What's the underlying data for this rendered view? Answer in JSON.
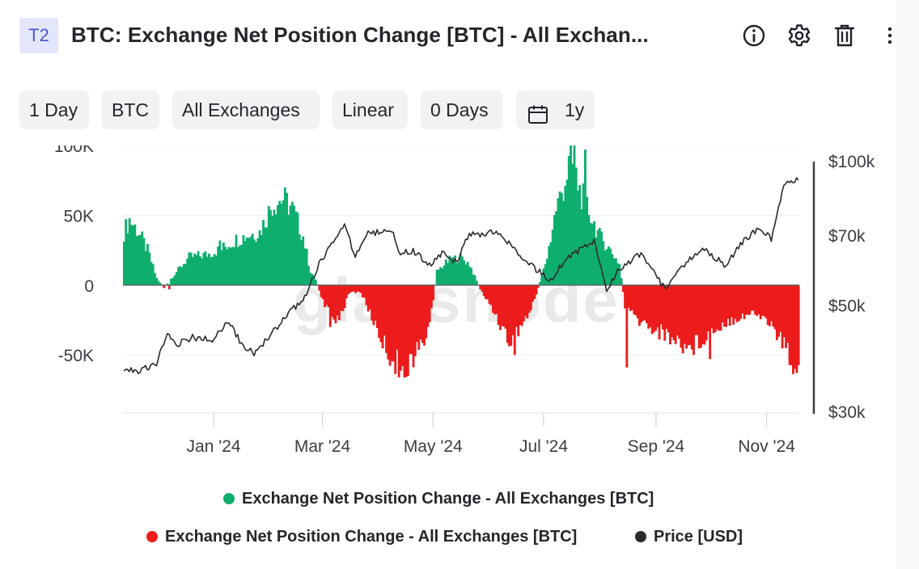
{
  "header": {
    "badge": "T2",
    "title": "BTC: Exchange Net Position Change [BTC] - All Exchan...",
    "icons": [
      "info-icon",
      "gear-icon",
      "trash-icon",
      "more-vertical-icon"
    ]
  },
  "toolbar": {
    "resolution": "1 Day",
    "asset": "BTC",
    "exchange": "All Exchanges",
    "scale": "Linear",
    "moving_average": "0 Days",
    "range": "1y",
    "range_icon": "calendar-icon"
  },
  "legend": {
    "positive": "Exchange Net Position Change - All Exchanges [BTC]",
    "negative": "Exchange Net Position Change - All Exchanges [BTC]",
    "price": "Price [USD]"
  },
  "colors": {
    "positive": "#0fae6e",
    "negative": "#ec1c1c",
    "price": "#2b2b2b",
    "grid": "#eceef1",
    "watermark": "#e4e4e4"
  },
  "chart_data": {
    "type": "bar",
    "title": "",
    "watermark": "glassnode",
    "x_range": [
      "2023-11-12",
      "2024-11-19"
    ],
    "x_ticks": [
      {
        "date": "2024-01-01",
        "label": "Jan '24"
      },
      {
        "date": "2024-03-01",
        "label": "Mar '24"
      },
      {
        "date": "2024-05-01",
        "label": "May '24"
      },
      {
        "date": "2024-07-01",
        "label": "Jul '24"
      },
      {
        "date": "2024-09-01",
        "label": "Sep '24"
      },
      {
        "date": "2024-11-01",
        "label": "Nov '24"
      }
    ],
    "y_left": {
      "ticks": [
        100000,
        50000,
        0,
        -50000
      ],
      "labels": [
        "100K",
        "50K",
        "0",
        "-50K"
      ],
      "range": [
        -91000,
        100000
      ]
    },
    "y_right": {
      "ticks": [
        100000,
        70000,
        50000,
        30000
      ],
      "labels": [
        "$100k",
        "$70k",
        "$50k",
        "$30k"
      ],
      "scale": "log",
      "range": [
        30000,
        100000
      ]
    },
    "grid": true,
    "legend_position": "bottom-center",
    "series": [
      {
        "name": "Exchange Net Position Change - All Exchanges [BTC]",
        "kind": "bars",
        "color_positive": "#0fae6e",
        "color_negative": "#ec1c1c",
        "anchors": [
          [
            "2023-11-12",
            38000
          ],
          [
            "2023-11-15",
            47000
          ],
          [
            "2023-11-20",
            38000
          ],
          [
            "2023-11-25",
            25000
          ],
          [
            "2023-11-30",
            5000
          ],
          [
            "2023-12-04",
            -2000
          ],
          [
            "2023-12-10",
            8000
          ],
          [
            "2023-12-18",
            20000
          ],
          [
            "2023-12-28",
            22000
          ],
          [
            "2024-01-05",
            26000
          ],
          [
            "2024-01-12",
            32000
          ],
          [
            "2024-01-20",
            36000
          ],
          [
            "2024-01-26",
            38000
          ],
          [
            "2024-02-02",
            58000
          ],
          [
            "2024-02-08",
            62000
          ],
          [
            "2024-02-13",
            55000
          ],
          [
            "2024-02-19",
            35000
          ],
          [
            "2024-02-23",
            10000
          ],
          [
            "2024-02-26",
            4000
          ],
          [
            "2024-03-02",
            -15000
          ],
          [
            "2024-03-07",
            -25000
          ],
          [
            "2024-03-11",
            -20000
          ],
          [
            "2024-03-16",
            -5000
          ],
          [
            "2024-03-22",
            -5000
          ],
          [
            "2024-03-27",
            -20000
          ],
          [
            "2024-04-03",
            -40000
          ],
          [
            "2024-04-09",
            -55000
          ],
          [
            "2024-04-15",
            -58000
          ],
          [
            "2024-04-21",
            -50000
          ],
          [
            "2024-04-26",
            -40000
          ],
          [
            "2024-04-30",
            -20000
          ],
          [
            "2024-05-03",
            10000
          ],
          [
            "2024-05-10",
            18000
          ],
          [
            "2024-05-16",
            20000
          ],
          [
            "2024-05-21",
            15000
          ],
          [
            "2024-05-26",
            0
          ],
          [
            "2024-05-29",
            -8000
          ],
          [
            "2024-06-02",
            -15000
          ],
          [
            "2024-06-08",
            -30000
          ],
          [
            "2024-06-13",
            -42000
          ],
          [
            "2024-06-18",
            -30000
          ],
          [
            "2024-06-24",
            -18000
          ],
          [
            "2024-06-29",
            2000
          ],
          [
            "2024-07-03",
            20000
          ],
          [
            "2024-07-08",
            55000
          ],
          [
            "2024-07-12",
            70000
          ],
          [
            "2024-07-16",
            90000
          ],
          [
            "2024-07-21",
            68000
          ],
          [
            "2024-07-27",
            50000
          ],
          [
            "2024-08-01",
            35000
          ],
          [
            "2024-08-07",
            25000
          ],
          [
            "2024-08-12",
            15000
          ],
          [
            "2024-08-15",
            -15000
          ],
          [
            "2024-08-22",
            -25000
          ],
          [
            "2024-08-29",
            -30000
          ],
          [
            "2024-09-06",
            -35000
          ],
          [
            "2024-09-13",
            -40000
          ],
          [
            "2024-09-20",
            -45000
          ],
          [
            "2024-09-27",
            -38000
          ],
          [
            "2024-10-05",
            -30000
          ],
          [
            "2024-10-12",
            -25000
          ],
          [
            "2024-10-19",
            -22000
          ],
          [
            "2024-10-26",
            -20000
          ],
          [
            "2024-11-02",
            -25000
          ],
          [
            "2024-11-07",
            -35000
          ],
          [
            "2024-11-12",
            -45000
          ],
          [
            "2024-11-16",
            -55000
          ],
          [
            "2024-11-19",
            -55000
          ]
        ],
        "spikes": [
          [
            "2024-07-18",
            106000
          ],
          [
            "2024-07-24",
            97000
          ],
          [
            "2024-08-16",
            -59000
          ],
          [
            "2024-06-15",
            -50000
          ],
          [
            "2024-04-12",
            -66000
          ],
          [
            "2024-04-17",
            -65000
          ],
          [
            "2024-11-17",
            -60000
          ],
          [
            "2024-01-04",
            32000
          ],
          [
            "2023-12-07",
            -3000
          ],
          [
            "2024-03-05",
            -30000
          ],
          [
            "2024-10-01",
            -53000
          ],
          [
            "2024-02-10",
            66000
          ]
        ]
      },
      {
        "name": "Price [USD]",
        "kind": "line",
        "color": "#2b2b2b",
        "values": [
          [
            "2023-11-12",
            37000
          ],
          [
            "2023-11-20",
            36500
          ],
          [
            "2023-11-30",
            37800
          ],
          [
            "2023-12-06",
            43500
          ],
          [
            "2023-12-12",
            41500
          ],
          [
            "2023-12-20",
            42800
          ],
          [
            "2023-12-31",
            42300
          ],
          [
            "2024-01-09",
            46500
          ],
          [
            "2024-01-15",
            42000
          ],
          [
            "2024-01-23",
            39500
          ],
          [
            "2024-01-31",
            42800
          ],
          [
            "2024-02-10",
            47500
          ],
          [
            "2024-02-20",
            52000
          ],
          [
            "2024-02-29",
            62000
          ],
          [
            "2024-03-05",
            66000
          ],
          [
            "2024-03-13",
            73000
          ],
          [
            "2024-03-19",
            63000
          ],
          [
            "2024-03-26",
            70500
          ],
          [
            "2024-04-08",
            71500
          ],
          [
            "2024-04-13",
            64000
          ],
          [
            "2024-04-20",
            64900
          ],
          [
            "2024-04-30",
            60600
          ],
          [
            "2024-05-06",
            64000
          ],
          [
            "2024-05-14",
            61500
          ],
          [
            "2024-05-21",
            70000
          ],
          [
            "2024-06-05",
            71000
          ],
          [
            "2024-06-24",
            60500
          ],
          [
            "2024-07-05",
            56500
          ],
          [
            "2024-07-15",
            63000
          ],
          [
            "2024-07-29",
            68000
          ],
          [
            "2024-08-05",
            54000
          ],
          [
            "2024-08-12",
            59500
          ],
          [
            "2024-08-24",
            64000
          ],
          [
            "2024-09-06",
            54000
          ],
          [
            "2024-09-19",
            62000
          ],
          [
            "2024-09-27",
            65800
          ],
          [
            "2024-10-10",
            60300
          ],
          [
            "2024-10-20",
            68500
          ],
          [
            "2024-10-29",
            72500
          ],
          [
            "2024-11-04",
            68500
          ],
          [
            "2024-11-11",
            88500
          ],
          [
            "2024-11-13",
            90000
          ],
          [
            "2024-11-19",
            92000
          ]
        ]
      }
    ]
  }
}
